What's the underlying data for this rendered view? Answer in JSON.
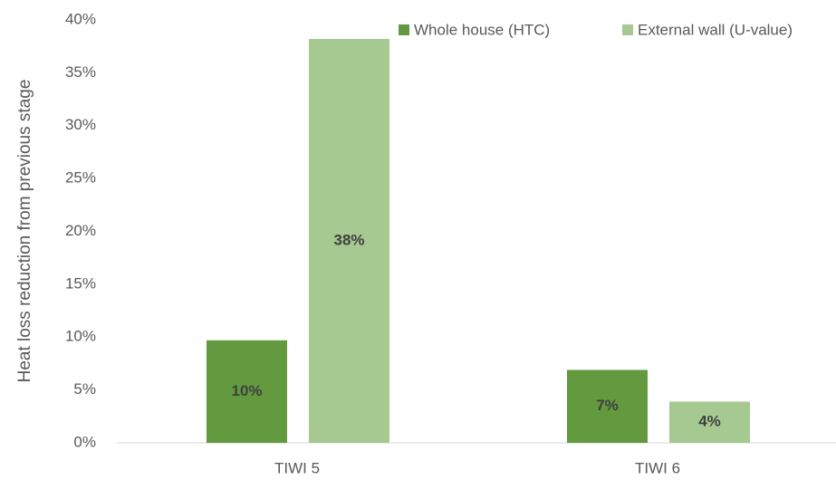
{
  "chart_data": {
    "type": "bar",
    "y_label": "Heat loss reduction from previous stage",
    "categories": [
      "TIWI 5",
      "TIWI 6"
    ],
    "series": [
      {
        "name": "Whole house (HTC)",
        "color": "#639a3f",
        "values": [
          9.7,
          6.9
        ],
        "value_labels": [
          "10%",
          "7%"
        ]
      },
      {
        "name": "External wall (U-value)",
        "color": "#a5c990",
        "values": [
          38.2,
          3.9
        ],
        "value_labels": [
          "38%",
          "4%"
        ]
      }
    ],
    "ylim": [
      0,
      40
    ],
    "yticks": [
      {
        "value": 0,
        "label": "0%"
      },
      {
        "value": 5,
        "label": "5%"
      },
      {
        "value": 10,
        "label": "10%"
      },
      {
        "value": 15,
        "label": "15%"
      },
      {
        "value": 20,
        "label": "20%"
      },
      {
        "value": 25,
        "label": "25%"
      },
      {
        "value": 30,
        "label": "30%"
      },
      {
        "value": 35,
        "label": "35%"
      },
      {
        "value": 40,
        "label": "40%"
      }
    ],
    "grid": false,
    "legend": "top-right"
  }
}
